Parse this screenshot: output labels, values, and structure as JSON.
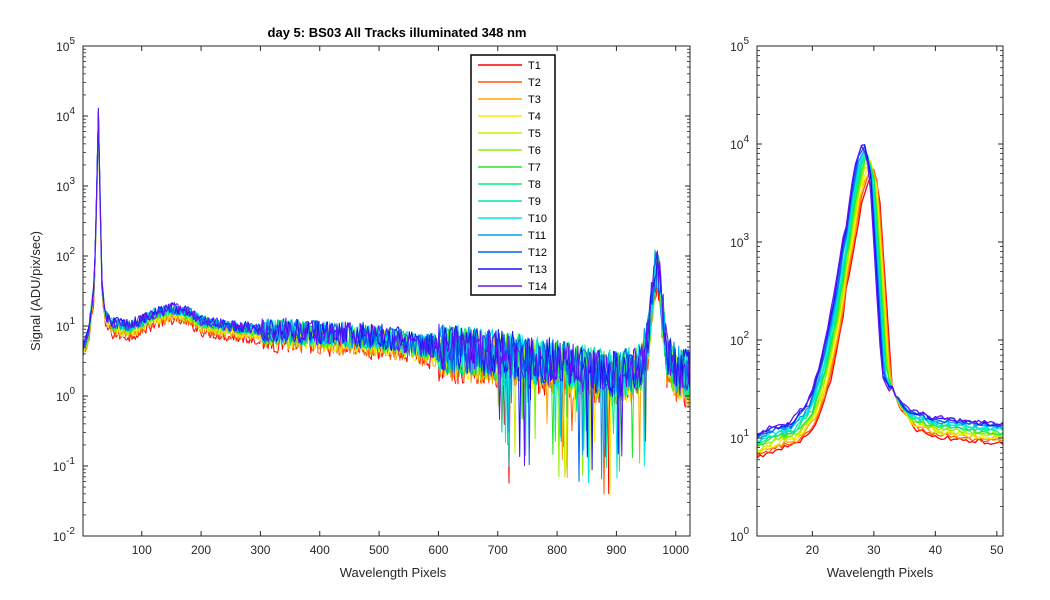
{
  "title": "day 5: BS03   All Tracks illuminated   348 nm",
  "chart_data": [
    {
      "type": "line",
      "panel": "main",
      "title": "day 5: BS03   All Tracks illuminated   348 nm",
      "xlabel": "Wavelength Pixels",
      "ylabel": "Signal (ADU/pix/sec)",
      "xlim": [
        1,
        1024
      ],
      "ylim": [
        0.01,
        100000
      ],
      "yscale": "log",
      "xticks": [
        100,
        200,
        300,
        400,
        500,
        600,
        700,
        800,
        900,
        1000
      ],
      "ytick_exponents": [
        -2,
        -1,
        0,
        1,
        2,
        3,
        4,
        5
      ],
      "legend": "top-center",
      "series": [
        {
          "name": "T1",
          "color": "#ff0000",
          "scale": 0.7
        },
        {
          "name": "T2",
          "color": "#ff5a0a",
          "scale": 0.74
        },
        {
          "name": "T3",
          "color": "#ffa500",
          "scale": 0.78
        },
        {
          "name": "T4",
          "color": "#ffee00",
          "scale": 0.82
        },
        {
          "name": "T5",
          "color": "#c8f000",
          "scale": 0.86
        },
        {
          "name": "T6",
          "color": "#8cf000",
          "scale": 0.89
        },
        {
          "name": "T7",
          "color": "#28e628",
          "scale": 0.92
        },
        {
          "name": "T8",
          "color": "#00ee80",
          "scale": 0.95
        },
        {
          "name": "T9",
          "color": "#00e6b4",
          "scale": 0.98
        },
        {
          "name": "T10",
          "color": "#00e6e6",
          "scale": 1.0
        },
        {
          "name": "T11",
          "color": "#00a0f0",
          "scale": 0.97
        },
        {
          "name": "T12",
          "color": "#0064f0",
          "scale": 0.99
        },
        {
          "name": "T13",
          "color": "#1414f5",
          "scale": 1.03
        },
        {
          "name": "T14",
          "color": "#6414f5",
          "scale": 1.0
        }
      ],
      "profile": {
        "x": [
          1,
          10,
          20,
          24,
          27,
          30,
          33,
          38,
          50,
          80,
          120,
          150,
          180,
          200,
          250,
          300,
          400,
          500,
          600,
          700,
          800,
          900,
          940,
          955,
          962,
          968,
          975,
          985,
          1000,
          1024
        ],
        "y": [
          5,
          8,
          40,
          800,
          11000,
          600,
          40,
          15,
          11,
          10,
          15,
          18,
          16,
          12,
          10,
          9,
          8,
          7,
          5,
          4,
          3,
          2,
          2.5,
          8,
          40,
          90,
          30,
          4,
          2.5,
          2
        ]
      }
    },
    {
      "type": "line",
      "panel": "zoom",
      "title": "",
      "xlabel": "Wavelength Pixels",
      "ylabel": "",
      "xlim": [
        11,
        51
      ],
      "ylim": [
        1,
        100000
      ],
      "yscale": "log",
      "xticks": [
        20,
        30,
        40,
        50
      ],
      "ytick_exponents": [
        0,
        1,
        2,
        3,
        4,
        5
      ],
      "profile": {
        "x": [
          11,
          14,
          17,
          20,
          22,
          24,
          26,
          27,
          28,
          29,
          30,
          31,
          32,
          34,
          36,
          40,
          45,
          51
        ],
        "y": [
          9,
          11,
          12,
          20,
          50,
          200,
          1200,
          3500,
          7500,
          10000,
          5000,
          500,
          45,
          25,
          17,
          14,
          13,
          12
        ]
      },
      "peak_values": [
        5000,
        5500,
        5800,
        6200,
        6600,
        7000,
        7400,
        7800,
        8200,
        8600,
        9000,
        9600,
        11000,
        10200
      ]
    }
  ]
}
